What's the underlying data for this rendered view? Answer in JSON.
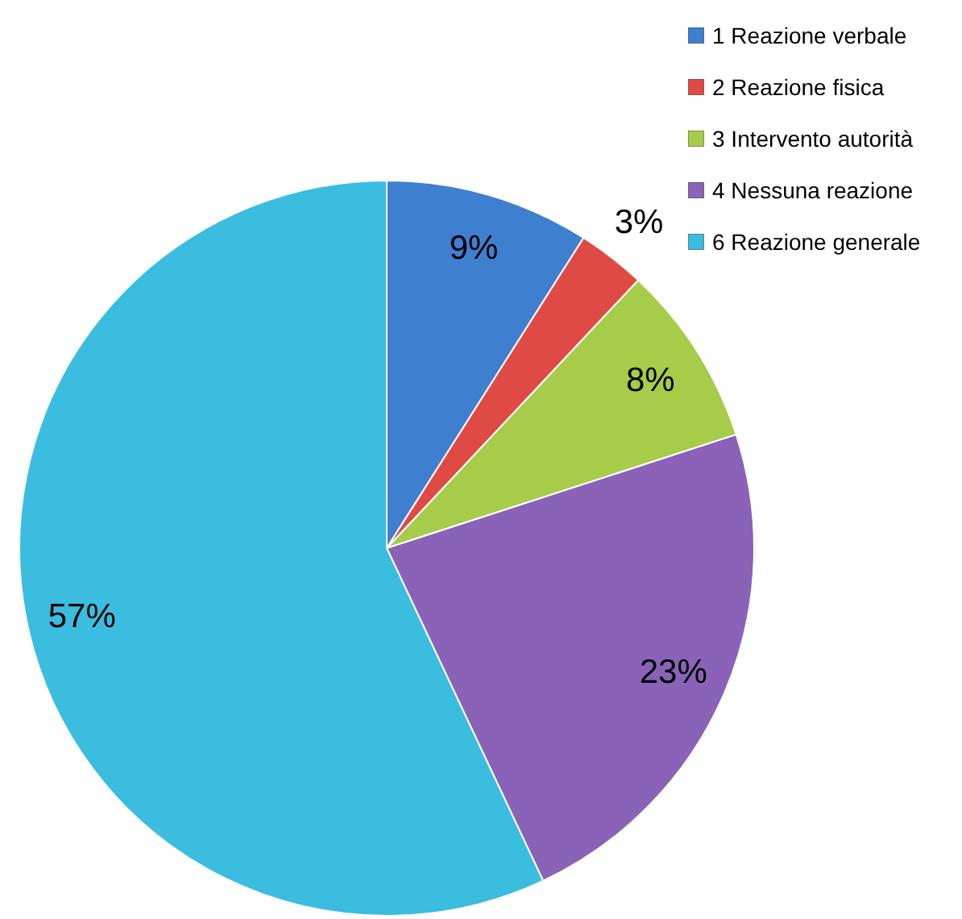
{
  "chart_data": {
    "type": "pie",
    "categories": [
      "1 Reazione verbale",
      "2 Reazione fisica",
      "3 Intervento autorità",
      "4 Nessuna reazione",
      "6 Reazione generale"
    ],
    "values": [
      9,
      3,
      8,
      23,
      57
    ],
    "value_labels": [
      "9%",
      "3%",
      "8%",
      "23%",
      "57%"
    ],
    "colors": [
      "#3f7fcf",
      "#e04a45",
      "#a6cc4a",
      "#8a63b8",
      "#3bbde0"
    ],
    "legend": "top right"
  }
}
